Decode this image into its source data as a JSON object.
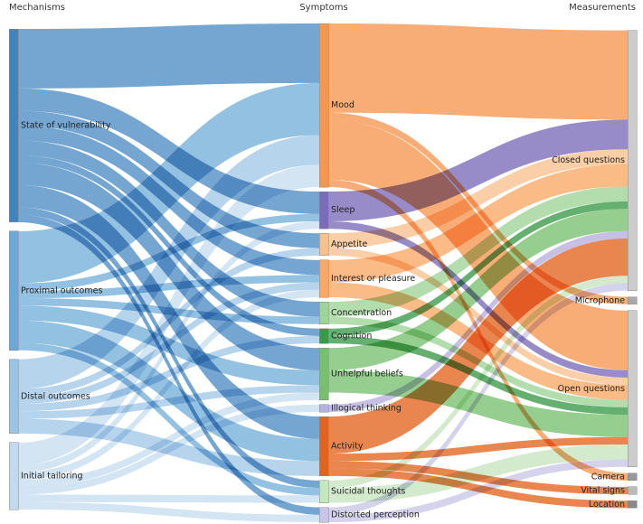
{
  "columns": [
    "Mechanisms",
    "Symptoms",
    "Measurements"
  ],
  "chart_data": {
    "type": "sankey",
    "title": "",
    "columns": [
      "Mechanisms",
      "Symptoms",
      "Measurements"
    ],
    "nodes": [
      {
        "id": "vuln",
        "label": "State of vulnerability",
        "column": 0,
        "color": "#3f84bf"
      },
      {
        "id": "prox",
        "label": "Proximal outcomes",
        "column": 0,
        "color": "#6aa9d6"
      },
      {
        "id": "distal",
        "label": "Distal outcomes",
        "column": 0,
        "color": "#9ac4e4"
      },
      {
        "id": "init",
        "label": "Initial tailoring",
        "column": 0,
        "color": "#c2d9ee"
      },
      {
        "id": "mood",
        "label": "Mood",
        "column": 1,
        "color": "#f7964f"
      },
      {
        "id": "sleep",
        "label": "Sleep",
        "column": 1,
        "color": "#7a6cb8"
      },
      {
        "id": "appetite",
        "label": "Appetite",
        "column": 1,
        "color": "#f9c08d"
      },
      {
        "id": "interest",
        "label": "Interest or pleasure",
        "column": 1,
        "color": "#f9a865"
      },
      {
        "id": "conc",
        "label": "Concentration",
        "column": 1,
        "color": "#9fd497"
      },
      {
        "id": "cog",
        "label": "Cognition",
        "column": 1,
        "color": "#3a9a48"
      },
      {
        "id": "unhelp",
        "label": "Unhelpful beliefs",
        "column": 1,
        "color": "#77c06e"
      },
      {
        "id": "illog",
        "label": "Illogical thinking",
        "column": 1,
        "color": "#b6b0dd"
      },
      {
        "id": "activity",
        "label": "Activity",
        "column": 1,
        "color": "#e3631e"
      },
      {
        "id": "suicide",
        "label": "Suicidal thoughts",
        "column": 1,
        "color": "#c6e6be"
      },
      {
        "id": "distort",
        "label": "Distorted perception",
        "column": 1,
        "color": "#c9c5e6"
      },
      {
        "id": "closed",
        "label": "Closed questions",
        "column": 2,
        "color": "#cccccc"
      },
      {
        "id": "mic",
        "label": "Microphone",
        "column": 2,
        "color": "#aaaaaa"
      },
      {
        "id": "open",
        "label": "Open questions",
        "column": 2,
        "color": "#cccccc"
      },
      {
        "id": "camera",
        "label": "Camera",
        "column": 2,
        "color": "#999999"
      },
      {
        "id": "vital",
        "label": "Vital signs",
        "column": 2,
        "color": "#bbbbbb"
      },
      {
        "id": "location",
        "label": "Location",
        "column": 2,
        "color": "#888888"
      }
    ],
    "links": [
      {
        "source": "vuln",
        "target": "mood",
        "value": 8
      },
      {
        "source": "vuln",
        "target": "sleep",
        "value": 3
      },
      {
        "source": "vuln",
        "target": "appetite",
        "value": 2
      },
      {
        "source": "vuln",
        "target": "interest",
        "value": 2
      },
      {
        "source": "vuln",
        "target": "conc",
        "value": 2
      },
      {
        "source": "vuln",
        "target": "cog",
        "value": 1
      },
      {
        "source": "vuln",
        "target": "unhelp",
        "value": 3
      },
      {
        "source": "vuln",
        "target": "activity",
        "value": 3
      },
      {
        "source": "vuln",
        "target": "suicide",
        "value": 1
      },
      {
        "source": "vuln",
        "target": "distort",
        "value": 1
      },
      {
        "source": "prox",
        "target": "mood",
        "value": 7
      },
      {
        "source": "prox",
        "target": "sleep",
        "value": 1
      },
      {
        "source": "prox",
        "target": "interest",
        "value": 1
      },
      {
        "source": "prox",
        "target": "conc",
        "value": 1
      },
      {
        "source": "prox",
        "target": "unhelp",
        "value": 2
      },
      {
        "source": "prox",
        "target": "activity",
        "value": 3
      },
      {
        "source": "prox",
        "target": "suicide",
        "value": 1
      },
      {
        "source": "distal",
        "target": "mood",
        "value": 4
      },
      {
        "source": "distal",
        "target": "appetite",
        "value": 1
      },
      {
        "source": "distal",
        "target": "interest",
        "value": 1
      },
      {
        "source": "distal",
        "target": "cog",
        "value": 1
      },
      {
        "source": "distal",
        "target": "unhelp",
        "value": 1
      },
      {
        "source": "distal",
        "target": "activity",
        "value": 2
      },
      {
        "source": "init",
        "target": "mood",
        "value": 3
      },
      {
        "source": "init",
        "target": "sleep",
        "value": 1
      },
      {
        "source": "init",
        "target": "interest",
        "value": 1
      },
      {
        "source": "init",
        "target": "unhelp",
        "value": 1
      },
      {
        "source": "init",
        "target": "illog",
        "value": 1
      },
      {
        "source": "init",
        "target": "suicide",
        "value": 1
      },
      {
        "source": "init",
        "target": "distort",
        "value": 1
      },
      {
        "source": "mood",
        "target": "closed",
        "value": 12
      },
      {
        "source": "mood",
        "target": "mic",
        "value": 1
      },
      {
        "source": "mood",
        "target": "open",
        "value": 8
      },
      {
        "source": "mood",
        "target": "camera",
        "value": 1
      },
      {
        "source": "sleep",
        "target": "closed",
        "value": 4
      },
      {
        "source": "sleep",
        "target": "open",
        "value": 1
      },
      {
        "source": "appetite",
        "target": "closed",
        "value": 2
      },
      {
        "source": "appetite",
        "target": "open",
        "value": 1
      },
      {
        "source": "interest",
        "target": "closed",
        "value": 3
      },
      {
        "source": "interest",
        "target": "open",
        "value": 2
      },
      {
        "source": "conc",
        "target": "closed",
        "value": 2
      },
      {
        "source": "conc",
        "target": "open",
        "value": 1
      },
      {
        "source": "cog",
        "target": "closed",
        "value": 1
      },
      {
        "source": "cog",
        "target": "open",
        "value": 1
      },
      {
        "source": "unhelp",
        "target": "closed",
        "value": 3
      },
      {
        "source": "unhelp",
        "target": "open",
        "value": 3
      },
      {
        "source": "illog",
        "target": "closed",
        "value": 1
      },
      {
        "source": "activity",
        "target": "closed",
        "value": 5
      },
      {
        "source": "activity",
        "target": "open",
        "value": 1
      },
      {
        "source": "activity",
        "target": "vital",
        "value": 1
      },
      {
        "source": "activity",
        "target": "location",
        "value": 1
      },
      {
        "source": "suicide",
        "target": "open",
        "value": 2
      },
      {
        "source": "suicide",
        "target": "closed",
        "value": 1
      },
      {
        "source": "distort",
        "target": "open",
        "value": 1
      },
      {
        "source": "distort",
        "target": "closed",
        "value": 1
      }
    ]
  }
}
